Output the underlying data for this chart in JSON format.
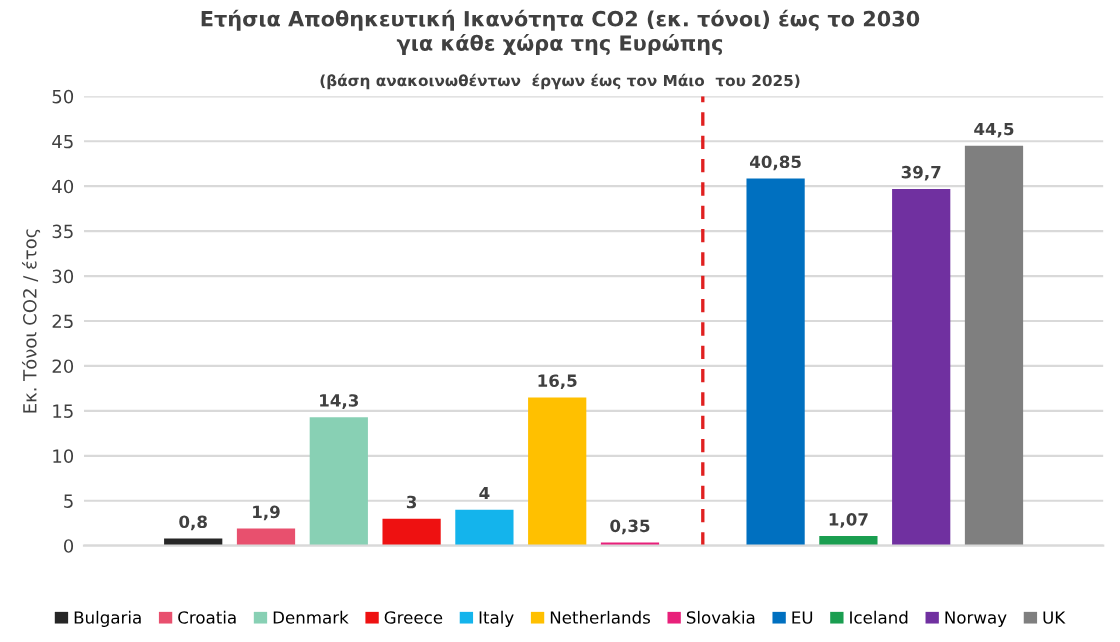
{
  "chart_data": {
    "type": "bar",
    "title": "Ετήσια Αποθηκευτική Ικανότητα CO2 (εκ. τόνοι) έως το 2030\nγια κάθε χώρα της Ευρώπης",
    "subtitle": "(βάση ανακοινωθέντων  έργων έως τον Μάιο  του 2025)",
    "ylabel": "Εκ. Τόνοι CO2 / έτος",
    "categories": [
      null,
      null,
      null,
      null,
      null,
      null,
      null,
      null,
      null,
      null,
      null,
      null,
      null,
      null
    ],
    "series": [
      {
        "name": "Bulgaria",
        "color": "#262626",
        "values": [
          null,
          0.8,
          null,
          null,
          null,
          null,
          null,
          null,
          null,
          null,
          null,
          null,
          null,
          null
        ],
        "value_labels": [
          null,
          "0,8",
          null,
          null,
          null,
          null,
          null,
          null,
          null,
          null,
          null,
          null,
          null,
          null
        ]
      },
      {
        "name": "Croatia",
        "color": "#e8506e",
        "values": [
          null,
          null,
          1.9,
          null,
          null,
          null,
          null,
          null,
          null,
          null,
          null,
          null,
          null,
          null
        ],
        "value_labels": [
          null,
          null,
          "1,9",
          null,
          null,
          null,
          null,
          null,
          null,
          null,
          null,
          null,
          null,
          null
        ]
      },
      {
        "name": "Denmark",
        "color": "#88d0b4",
        "values": [
          null,
          null,
          null,
          14.3,
          null,
          null,
          null,
          null,
          null,
          null,
          null,
          null,
          null,
          null
        ],
        "value_labels": [
          null,
          null,
          null,
          "14,3",
          null,
          null,
          null,
          null,
          null,
          null,
          null,
          null,
          null,
          null
        ]
      },
      {
        "name": "Greece",
        "color": "#ee1111",
        "values": [
          null,
          null,
          null,
          null,
          3,
          null,
          null,
          null,
          null,
          null,
          null,
          null,
          null,
          null
        ],
        "value_labels": [
          null,
          null,
          null,
          null,
          "3",
          null,
          null,
          null,
          null,
          null,
          null,
          null,
          null,
          null
        ]
      },
      {
        "name": "Italy",
        "color": "#14b4ec",
        "values": [
          null,
          null,
          null,
          null,
          null,
          4,
          null,
          null,
          null,
          null,
          null,
          null,
          null,
          null
        ],
        "value_labels": [
          null,
          null,
          null,
          null,
          null,
          "4",
          null,
          null,
          null,
          null,
          null,
          null,
          null,
          null
        ]
      },
      {
        "name": "Netherlands",
        "color": "#ffc000",
        "values": [
          null,
          null,
          null,
          null,
          null,
          null,
          16.5,
          null,
          null,
          null,
          null,
          null,
          null,
          null
        ],
        "value_labels": [
          null,
          null,
          null,
          null,
          null,
          null,
          "16,5",
          null,
          null,
          null,
          null,
          null,
          null,
          null
        ]
      },
      {
        "name": "Slovakia",
        "color": "#e8207a",
        "values": [
          null,
          null,
          null,
          null,
          null,
          null,
          null,
          0.35,
          null,
          null,
          null,
          null,
          null,
          null
        ],
        "value_labels": [
          null,
          null,
          null,
          null,
          null,
          null,
          null,
          "0,35",
          null,
          null,
          null,
          null,
          null,
          null
        ]
      },
      {
        "name": "EU",
        "color": "#0070c0",
        "values": [
          null,
          null,
          null,
          null,
          null,
          null,
          null,
          null,
          null,
          40.85,
          null,
          null,
          null,
          null
        ],
        "value_labels": [
          null,
          null,
          null,
          null,
          null,
          null,
          null,
          null,
          null,
          "40,85",
          null,
          null,
          null,
          null
        ]
      },
      {
        "name": "Iceland",
        "color": "#1a9e50",
        "values": [
          null,
          null,
          null,
          null,
          null,
          null,
          null,
          null,
          null,
          null,
          1.07,
          null,
          null,
          null
        ],
        "value_labels": [
          null,
          null,
          null,
          null,
          null,
          null,
          null,
          null,
          null,
          null,
          "1,07",
          null,
          null,
          null
        ]
      },
      {
        "name": "Norway",
        "color": "#7030a0",
        "values": [
          null,
          null,
          null,
          null,
          null,
          null,
          null,
          null,
          null,
          null,
          null,
          39.7,
          null,
          null
        ],
        "value_labels": [
          null,
          null,
          null,
          null,
          null,
          null,
          null,
          null,
          null,
          null,
          null,
          "39,7",
          null,
          null
        ]
      },
      {
        "name": "UK",
        "color": "#7f7f7f",
        "values": [
          null,
          null,
          null,
          null,
          null,
          null,
          null,
          null,
          null,
          null,
          null,
          null,
          44.5,
          null
        ],
        "value_labels": [
          null,
          null,
          null,
          null,
          null,
          null,
          null,
          null,
          null,
          null,
          null,
          null,
          "44,5",
          null
        ]
      }
    ],
    "ylim": [
      0,
      50
    ],
    "yticks": [
      0,
      5,
      10,
      15,
      20,
      25,
      30,
      35,
      40,
      45,
      50
    ],
    "grid": "y",
    "legend": "bottom"
  }
}
